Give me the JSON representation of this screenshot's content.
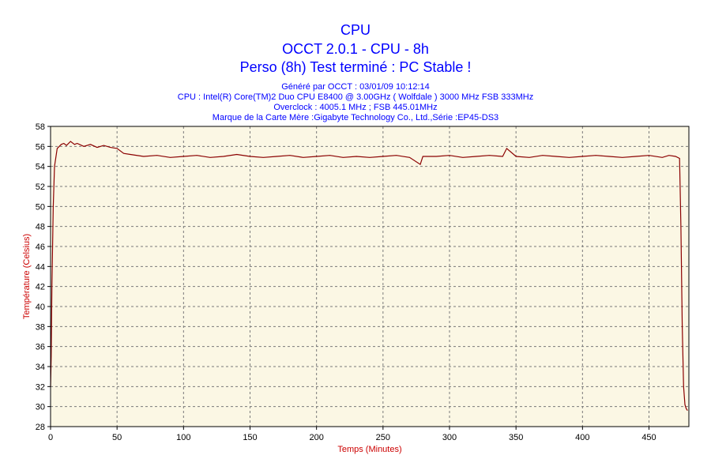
{
  "header": {
    "title": "CPU",
    "subtitle": "OCCT 2.0.1 - CPU - 8h",
    "status": "Perso (8h) Test terminé : PC Stable !",
    "info": [
      "Généré par OCCT : 03/01/09 10:12:14",
      "CPU : Intel(R) Core(TM)2 Duo CPU E8400 @ 3.00GHz ( Wolfdale ) 3000 MHz FSB 333MHz",
      "Overclock : 4005.1 MHz ; FSB 445.01MHz",
      "Marque de la Carte Mère :Gigabyte Technology Co., Ltd.,Série :EP45-DS3"
    ]
  },
  "colors": {
    "plot_background": "#fbf7e4",
    "grid": "#7a7a7a",
    "series": "#8b0000",
    "title": "#0000ff",
    "axis_label": "#cc0000"
  },
  "chart_data": {
    "type": "line",
    "title": "CPU",
    "xlabel": "Temps (Minutes)",
    "ylabel": "Température (Celsius)",
    "xlim": [
      0,
      480
    ],
    "ylim": [
      28,
      58
    ],
    "xticks": [
      0,
      50,
      100,
      150,
      200,
      250,
      300,
      350,
      400,
      450
    ],
    "yticks": [
      28,
      30,
      32,
      34,
      36,
      38,
      40,
      42,
      44,
      46,
      48,
      50,
      52,
      54,
      56,
      58
    ],
    "grid": true,
    "series": [
      {
        "name": "",
        "x": [
          0,
          0.5,
          1,
          2,
          3,
          5,
          8,
          10,
          12,
          15,
          18,
          20,
          25,
          30,
          35,
          40,
          45,
          50,
          55,
          60,
          70,
          80,
          90,
          100,
          110,
          120,
          130,
          140,
          150,
          160,
          170,
          180,
          190,
          200,
          210,
          220,
          230,
          240,
          250,
          260,
          270,
          278,
          280,
          290,
          300,
          310,
          320,
          330,
          340,
          343,
          350,
          360,
          370,
          380,
          390,
          400,
          410,
          420,
          430,
          440,
          450,
          460,
          465,
          470,
          473,
          474,
          475,
          476,
          477,
          478,
          479
        ],
        "y": [
          32,
          35,
          42,
          50,
          54,
          55.8,
          56.2,
          56.3,
          56.1,
          56.5,
          56.2,
          56.3,
          56.0,
          56.2,
          55.9,
          56.1,
          55.9,
          55.8,
          55.3,
          55.2,
          55.0,
          55.1,
          54.9,
          55.0,
          55.1,
          54.9,
          55.0,
          55.2,
          55.0,
          54.9,
          55.0,
          55.1,
          54.9,
          55.0,
          55.1,
          54.9,
          55.0,
          54.9,
          55.0,
          55.1,
          54.9,
          54.2,
          55.0,
          55.0,
          55.1,
          54.9,
          55.0,
          55.1,
          55.0,
          55.8,
          55.0,
          54.9,
          55.1,
          55.0,
          54.9,
          55.0,
          55.1,
          55.0,
          54.9,
          55.0,
          55.1,
          54.9,
          55.1,
          55.0,
          54.8,
          48,
          38,
          32,
          30.2,
          29.8,
          29.6
        ]
      }
    ]
  }
}
